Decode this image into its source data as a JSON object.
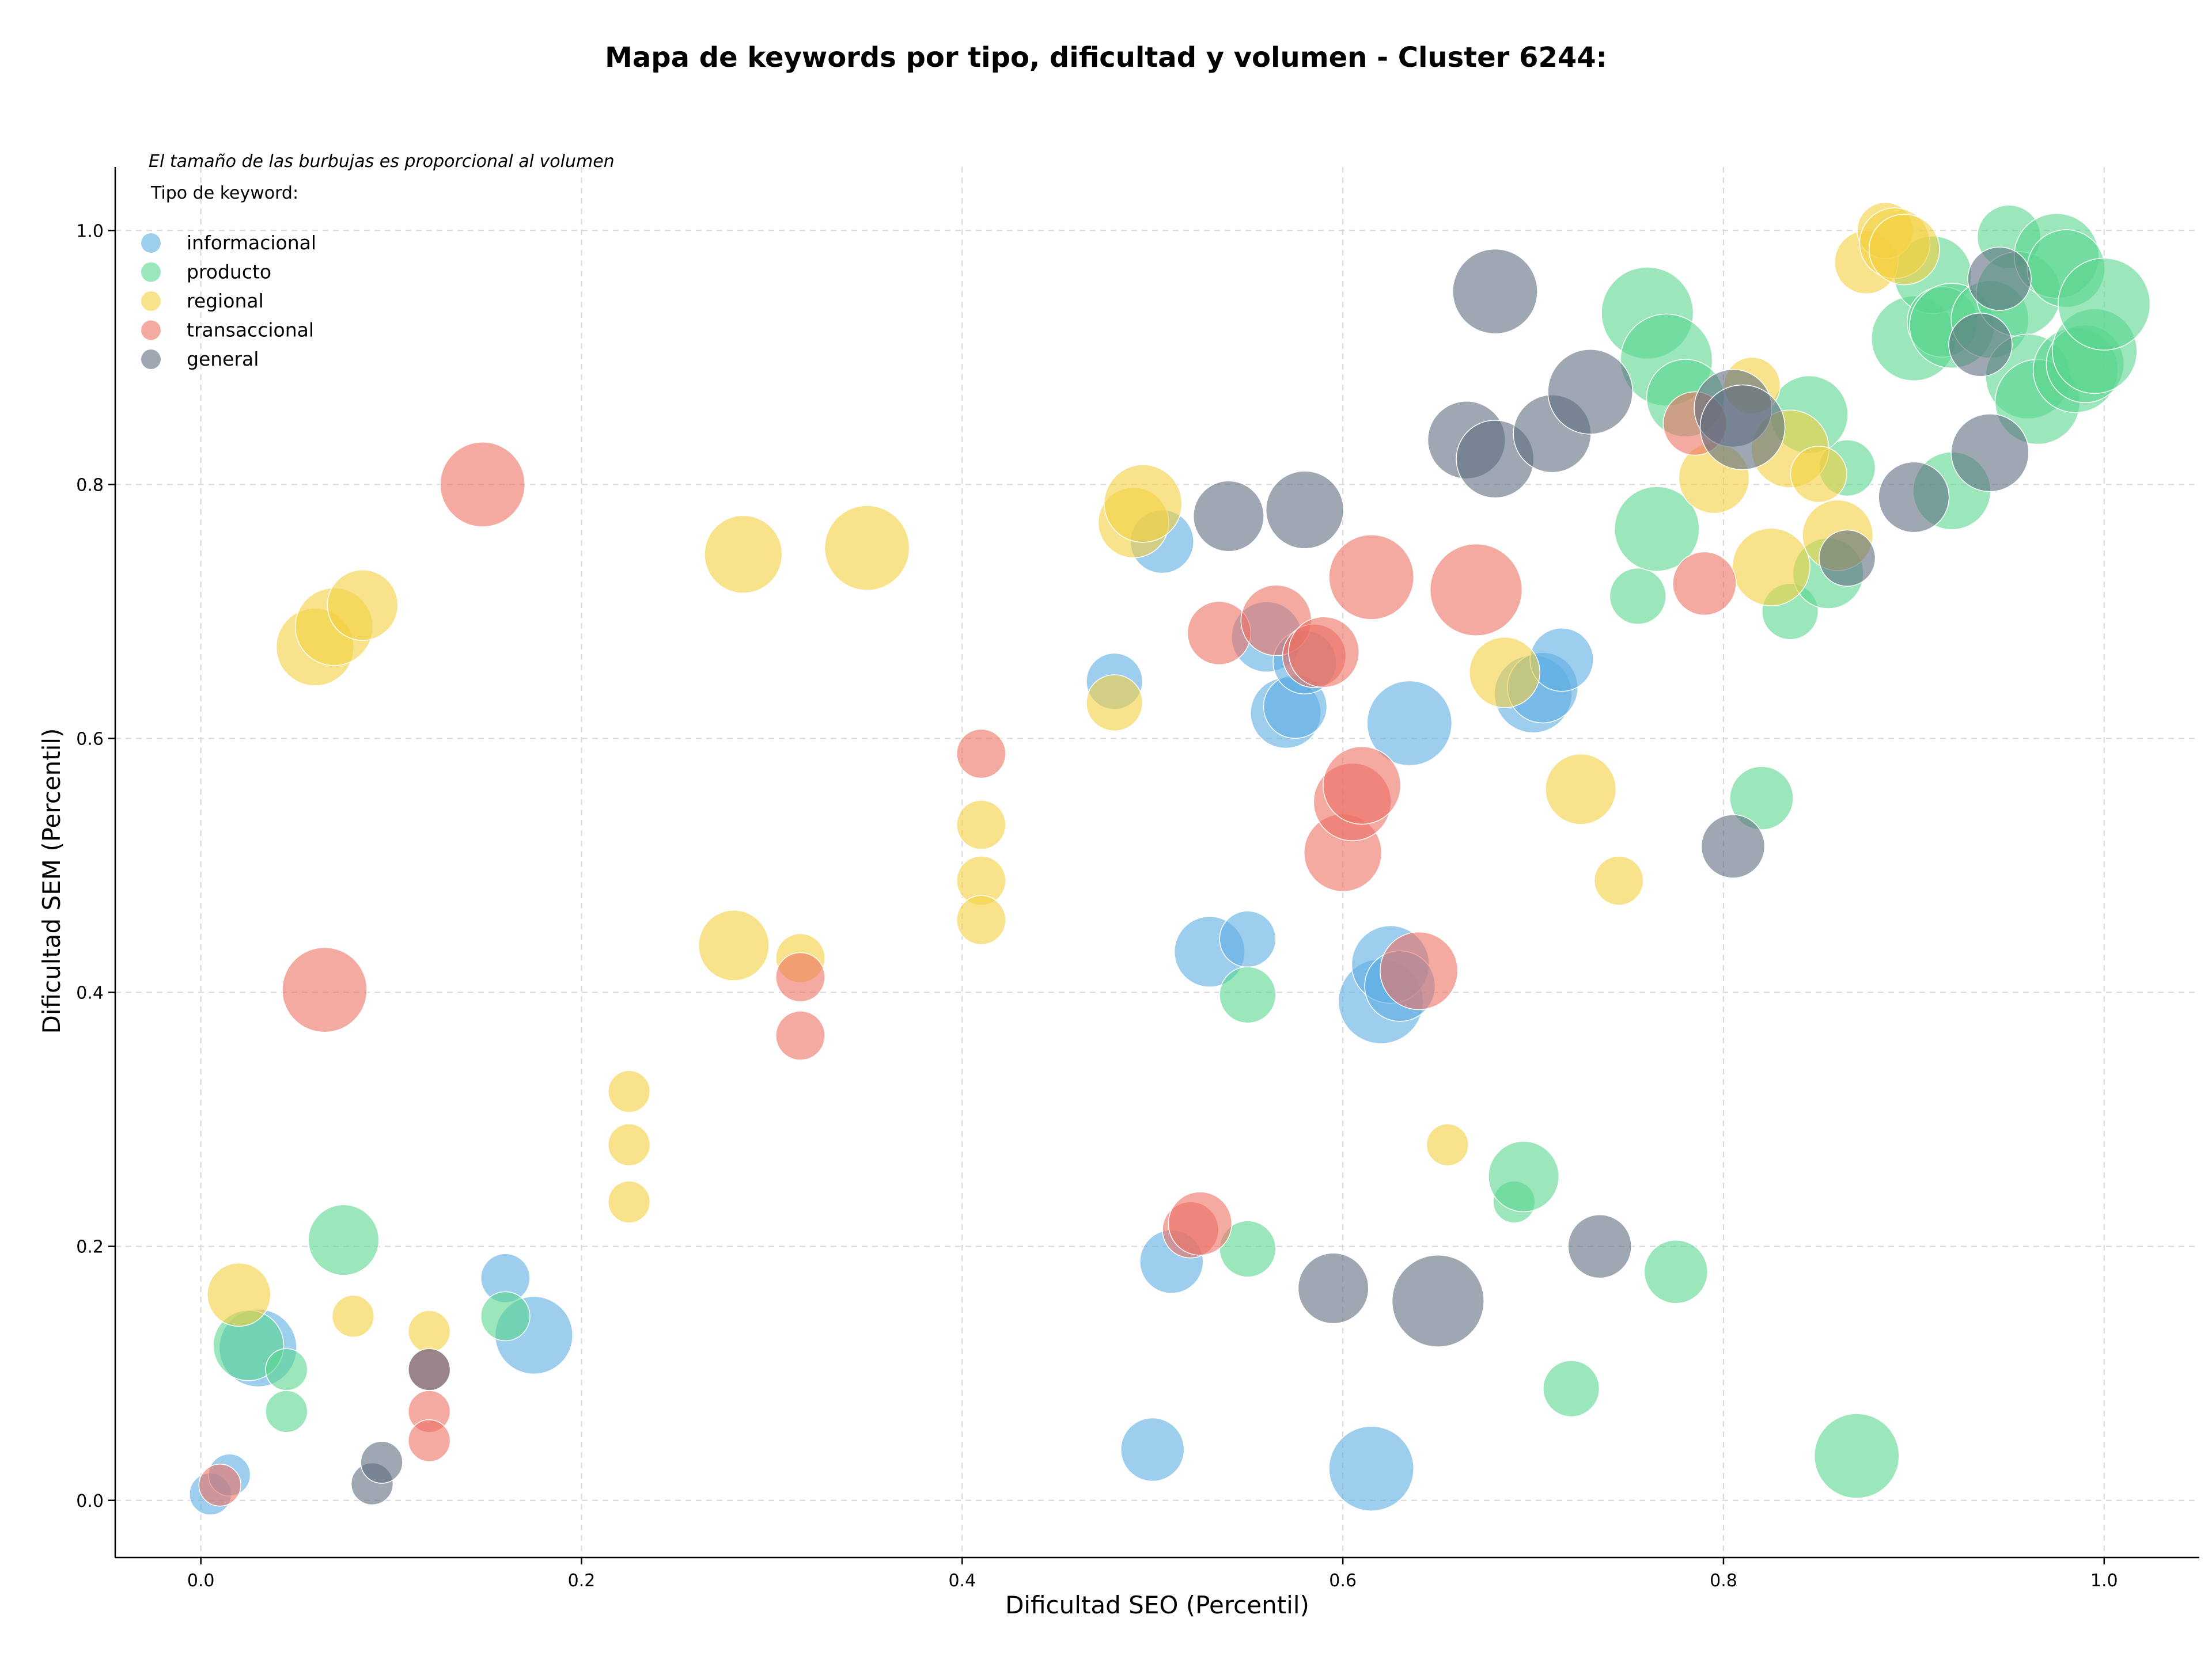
{
  "chart_data": {
    "type": "scatter",
    "title": "Mapa de keywords por tipo, dificultad y volumen - Cluster 6244:",
    "xlabel": "Dificultad SEO (Percentil)",
    "ylabel": "Dificultad SEM (Percentil)",
    "note": "El tamaño de las burbujas es proporcional al volumen",
    "legend_title": "Tipo de keyword:",
    "legend_position": "top-left",
    "grid": true,
    "xlim": [
      -0.045,
      1.05
    ],
    "ylim": [
      -0.045,
      1.05
    ],
    "x_ticks": [
      "0.0",
      "0.2",
      "0.4",
      "0.6",
      "0.8",
      "1.0"
    ],
    "y_ticks": [
      "0.0",
      "0.2",
      "0.4",
      "0.6",
      "0.8",
      "1.0"
    ],
    "series": [
      {
        "name": "informacional",
        "color": "#5dade2",
        "points": [
          [
            0.03,
            0.12,
            7
          ],
          [
            0.005,
            0.005,
            2
          ],
          [
            0.015,
            0.02,
            2
          ],
          [
            0.16,
            0.175,
            3
          ],
          [
            0.175,
            0.13,
            7
          ],
          [
            0.48,
            0.645,
            4
          ],
          [
            0.505,
            0.755,
            5
          ],
          [
            0.56,
            0.68,
            6
          ],
          [
            0.57,
            0.62,
            6
          ],
          [
            0.575,
            0.625,
            5
          ],
          [
            0.58,
            0.66,
            5
          ],
          [
            0.635,
            0.612,
            8
          ],
          [
            0.7,
            0.635,
            7
          ],
          [
            0.705,
            0.64,
            6
          ],
          [
            0.715,
            0.662,
            5
          ],
          [
            0.53,
            0.432,
            6
          ],
          [
            0.55,
            0.442,
            4
          ],
          [
            0.62,
            0.393,
            8
          ],
          [
            0.625,
            0.422,
            7
          ],
          [
            0.63,
            0.405,
            6
          ],
          [
            0.51,
            0.188,
            5
          ],
          [
            0.5,
            0.04,
            5
          ],
          [
            0.615,
            0.025,
            8
          ]
        ]
      },
      {
        "name": "producto",
        "color": "#58d68d",
        "points": [
          [
            0.025,
            0.122,
            6
          ],
          [
            0.075,
            0.205,
            6
          ],
          [
            0.045,
            0.103,
            2
          ],
          [
            0.045,
            0.07,
            2
          ],
          [
            0.16,
            0.145,
            3
          ],
          [
            0.55,
            0.398,
            4
          ],
          [
            0.55,
            0.198,
            4
          ],
          [
            0.69,
            0.235,
            2
          ],
          [
            0.695,
            0.255,
            6
          ],
          [
            0.72,
            0.088,
            4
          ],
          [
            0.775,
            0.18,
            5
          ],
          [
            0.82,
            0.553,
            5
          ],
          [
            0.87,
            0.035,
            8
          ],
          [
            0.755,
            0.712,
            4
          ],
          [
            0.765,
            0.765,
            8
          ],
          [
            0.835,
            0.7,
            4
          ],
          [
            0.855,
            0.73,
            6
          ],
          [
            0.865,
            0.813,
            4
          ],
          [
            0.845,
            0.855,
            7
          ],
          [
            0.76,
            0.935,
            9
          ],
          [
            0.77,
            0.898,
            9
          ],
          [
            0.78,
            0.868,
            7
          ],
          [
            0.92,
            0.795,
            7
          ],
          [
            0.9,
            0.915,
            8
          ],
          [
            0.91,
            0.965,
            7
          ],
          [
            0.915,
            0.928,
            6
          ],
          [
            0.92,
            0.925,
            8
          ],
          [
            0.94,
            0.93,
            7
          ],
          [
            0.95,
            0.995,
            5
          ],
          [
            0.955,
            0.95,
            8
          ],
          [
            0.96,
            0.885,
            8
          ],
          [
            0.965,
            0.865,
            8
          ],
          [
            0.975,
            0.98,
            8
          ],
          [
            0.98,
            0.97,
            7
          ],
          [
            0.985,
            0.89,
            8
          ],
          [
            0.99,
            0.895,
            7
          ],
          [
            0.995,
            0.905,
            8
          ],
          [
            1.0,
            0.942,
            9
          ]
        ]
      },
      {
        "name": "regional",
        "color": "#f4d03f",
        "points": [
          [
            0.02,
            0.162,
            5
          ],
          [
            0.08,
            0.145,
            2
          ],
          [
            0.12,
            0.133,
            2
          ],
          [
            0.06,
            0.672,
            7
          ],
          [
            0.07,
            0.688,
            7
          ],
          [
            0.085,
            0.705,
            6
          ],
          [
            0.225,
            0.322,
            2
          ],
          [
            0.225,
            0.28,
            2
          ],
          [
            0.225,
            0.235,
            2
          ],
          [
            0.28,
            0.437,
            6
          ],
          [
            0.285,
            0.745,
            7
          ],
          [
            0.315,
            0.427,
            3
          ],
          [
            0.35,
            0.75,
            8
          ],
          [
            0.41,
            0.532,
            3
          ],
          [
            0.41,
            0.488,
            3
          ],
          [
            0.41,
            0.457,
            3
          ],
          [
            0.48,
            0.628,
            4
          ],
          [
            0.49,
            0.77,
            6
          ],
          [
            0.495,
            0.785,
            7
          ],
          [
            0.655,
            0.28,
            2
          ],
          [
            0.685,
            0.652,
            6
          ],
          [
            0.725,
            0.56,
            6
          ],
          [
            0.745,
            0.488,
            3
          ],
          [
            0.795,
            0.805,
            6
          ],
          [
            0.815,
            0.878,
            4
          ],
          [
            0.825,
            0.735,
            7
          ],
          [
            0.835,
            0.828,
            7
          ],
          [
            0.85,
            0.808,
            4
          ],
          [
            0.86,
            0.76,
            6
          ],
          [
            0.875,
            0.975,
            5
          ],
          [
            0.885,
            1.0,
            4
          ],
          [
            0.89,
            0.99,
            6
          ],
          [
            0.895,
            0.985,
            6
          ]
        ]
      },
      {
        "name": "transaccional",
        "color": "#ec7063",
        "points": [
          [
            0.01,
            0.012,
            2
          ],
          [
            0.065,
            0.402,
            8
          ],
          [
            0.148,
            0.8,
            8
          ],
          [
            0.12,
            0.07,
            2
          ],
          [
            0.12,
            0.047,
            2
          ],
          [
            0.12,
            0.103,
            2
          ],
          [
            0.315,
            0.412,
            3
          ],
          [
            0.315,
            0.366,
            3
          ],
          [
            0.41,
            0.588,
            3
          ],
          [
            0.52,
            0.213,
            4
          ],
          [
            0.525,
            0.218,
            5
          ],
          [
            0.535,
            0.683,
            5
          ],
          [
            0.565,
            0.693,
            6
          ],
          [
            0.585,
            0.665,
            5
          ],
          [
            0.59,
            0.668,
            6
          ],
          [
            0.6,
            0.51,
            7
          ],
          [
            0.605,
            0.55,
            7
          ],
          [
            0.61,
            0.563,
            7
          ],
          [
            0.615,
            0.727,
            8
          ],
          [
            0.64,
            0.417,
            7
          ],
          [
            0.67,
            0.717,
            9
          ],
          [
            0.785,
            0.848,
            5
          ],
          [
            0.79,
            0.722,
            5
          ]
        ]
      },
      {
        "name": "general",
        "color": "#5d6d7e",
        "points": [
          [
            0.09,
            0.013,
            2
          ],
          [
            0.095,
            0.03,
            2
          ],
          [
            0.12,
            0.103,
            2
          ],
          [
            0.54,
            0.775,
            6
          ],
          [
            0.58,
            0.78,
            7
          ],
          [
            0.595,
            0.167,
            6
          ],
          [
            0.65,
            0.157,
            9
          ],
          [
            0.665,
            0.835,
            7
          ],
          [
            0.68,
            0.82,
            7
          ],
          [
            0.68,
            0.952,
            8
          ],
          [
            0.71,
            0.84,
            7
          ],
          [
            0.73,
            0.873,
            8
          ],
          [
            0.735,
            0.2,
            5
          ],
          [
            0.805,
            0.515,
            5
          ],
          [
            0.805,
            0.86,
            7
          ],
          [
            0.81,
            0.845,
            8
          ],
          [
            0.865,
            0.742,
            4
          ],
          [
            0.9,
            0.79,
            6
          ],
          [
            0.94,
            0.825,
            7
          ],
          [
            0.935,
            0.91,
            5
          ],
          [
            0.945,
            0.962,
            5
          ]
        ]
      }
    ]
  }
}
